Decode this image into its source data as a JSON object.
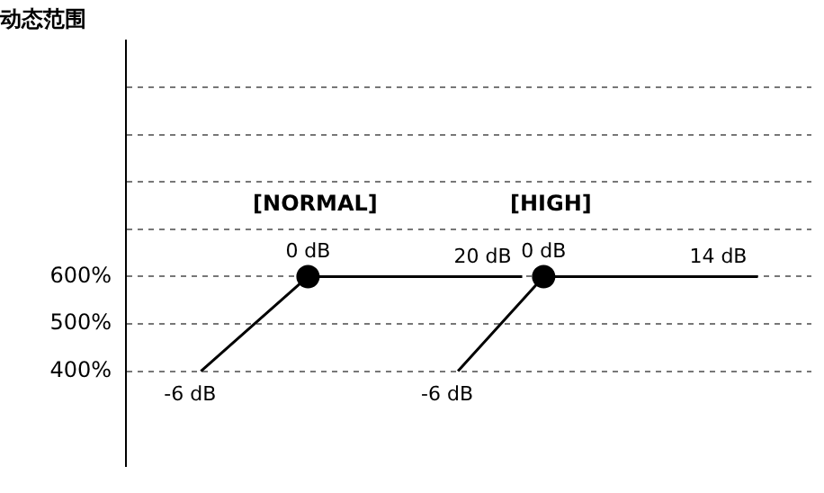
{
  "chart_data": {
    "type": "line",
    "title": "动态范围",
    "categories": [
      null,
      null,
      null,
      null,
      null,
      null,
      null,
      null,
      null,
      null,
      null,
      null,
      null,
      null,
      null,
      null,
      null,
      null,
      null,
      null,
      null,
      null,
      null,
      null,
      null,
      null,
      null,
      null,
      null,
      null,
      null,
      null
    ],
    "ylim": [
      200,
      1100
    ],
    "yticks": [
      {
        "value": 400,
        "label": "400%"
      },
      {
        "value": 500,
        "label": "500%"
      },
      {
        "value": 600,
        "label": "600%"
      },
      {
        "value": 700,
        "label": null
      },
      {
        "value": 800,
        "label": null
      },
      {
        "value": 900,
        "label": null
      },
      {
        "value": 1000,
        "label": null
      }
    ],
    "tick_labels": "y",
    "grid": "y",
    "line_style": "solid",
    "legend": false,
    "series": [
      {
        "name": "[NORMAL]",
        "color": "#000000",
        "values": [
          null,
          null,
          null,
          400,
          null,
          null,
          null,
          null,
          600,
          null,
          null,
          null,
          null,
          null,
          null,
          null,
          null,
          null,
          600,
          null,
          null,
          null,
          null,
          null,
          null,
          null,
          null,
          null,
          null,
          null,
          null,
          null
        ]
      },
      {
        "name": "[HIGH]",
        "color": "#000000",
        "values": [
          null,
          null,
          null,
          null,
          null,
          null,
          null,
          null,
          null,
          null,
          null,
          null,
          null,
          null,
          null,
          400,
          null,
          null,
          null,
          600,
          null,
          null,
          null,
          null,
          null,
          null,
          null,
          null,
          null,
          600,
          null,
          null
        ]
      },
      {
        "type": "scatter",
        "color": "#000000",
        "marker": "circle",
        "values": [
          null,
          null,
          null,
          null,
          null,
          null,
          null,
          null,
          600,
          null,
          null,
          null,
          null,
          null,
          null,
          null,
          null,
          null,
          null,
          600,
          null,
          null,
          null,
          null,
          null,
          null,
          null,
          null,
          null,
          null,
          null,
          null
        ]
      }
    ],
    "annotations": [
      "-6 dB",
      "0 dB",
      "20 dB",
      "-6 dB",
      "0 dB",
      "14 dB"
    ]
  }
}
